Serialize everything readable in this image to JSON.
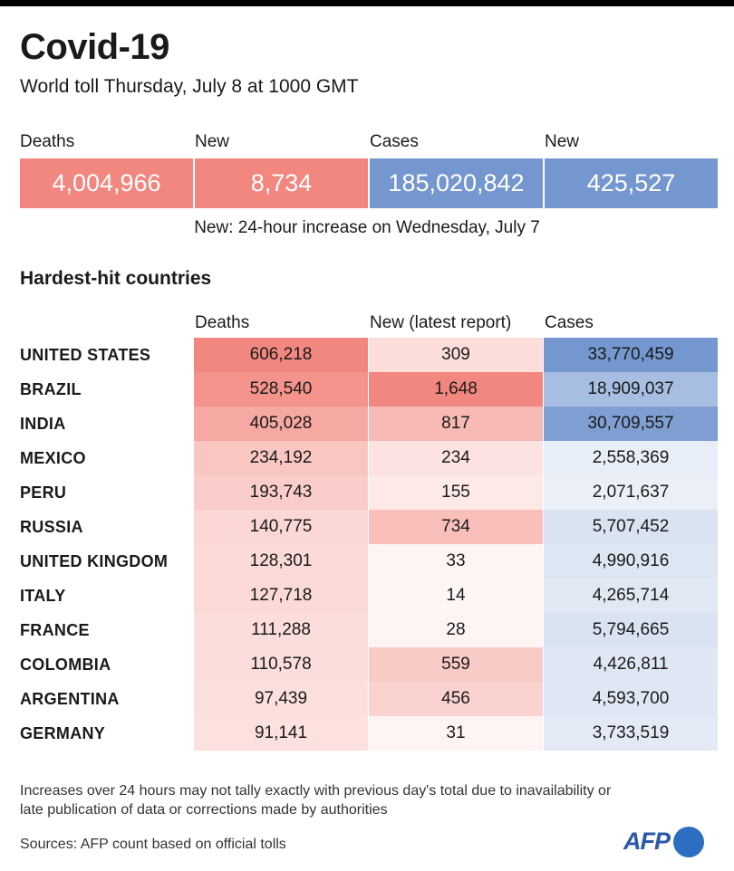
{
  "title": "Covid-19",
  "subtitle": "World toll Thursday, July 8 at 1000 GMT",
  "summary": [
    {
      "label": "Deaths",
      "value": "4,004,966",
      "color": "#f2877f"
    },
    {
      "label": "New",
      "value": "8,734",
      "color": "#f2877f"
    },
    {
      "label": "Cases",
      "value": "185,020,842",
      "color": "#7597cf"
    },
    {
      "label": "New",
      "value": "425,527",
      "color": "#7597cf"
    }
  ],
  "note": "New: 24-hour increase on Wednesday, July 7",
  "section_title": "Hardest-hit countries",
  "chart_data": {
    "type": "table",
    "columns": [
      "Deaths",
      "New (latest report)",
      "Cases"
    ],
    "rows": [
      {
        "country": "UNITED STATES",
        "deaths": 606218,
        "new": 309,
        "cases": 33770459,
        "deaths_label": "606,218",
        "new_label": "309",
        "cases_label": "33,770,459"
      },
      {
        "country": "BRAZIL",
        "deaths": 528540,
        "new": 1648,
        "cases": 18909037,
        "deaths_label": "528,540",
        "new_label": "1,648",
        "cases_label": "18,909,037"
      },
      {
        "country": "INDIA",
        "deaths": 405028,
        "new": 817,
        "cases": 30709557,
        "deaths_label": "405,028",
        "new_label": "817",
        "cases_label": "30,709,557"
      },
      {
        "country": "MEXICO",
        "deaths": 234192,
        "new": 234,
        "cases": 2558369,
        "deaths_label": "234,192",
        "new_label": "234",
        "cases_label": "2,558,369"
      },
      {
        "country": "PERU",
        "deaths": 193743,
        "new": 155,
        "cases": 2071637,
        "deaths_label": "193,743",
        "new_label": "155",
        "cases_label": "2,071,637"
      },
      {
        "country": "RUSSIA",
        "deaths": 140775,
        "new": 734,
        "cases": 5707452,
        "deaths_label": "140,775",
        "new_label": "734",
        "cases_label": "5,707,452"
      },
      {
        "country": "UNITED KINGDOM",
        "deaths": 128301,
        "new": 33,
        "cases": 4990916,
        "deaths_label": "128,301",
        "new_label": "33",
        "cases_label": "4,990,916"
      },
      {
        "country": "ITALY",
        "deaths": 127718,
        "new": 14,
        "cases": 4265714,
        "deaths_label": "127,718",
        "new_label": "14",
        "cases_label": "4,265,714"
      },
      {
        "country": "FRANCE",
        "deaths": 111288,
        "new": 28,
        "cases": 5794665,
        "deaths_label": "111,288",
        "new_label": "28",
        "cases_label": "5,794,665"
      },
      {
        "country": "COLOMBIA",
        "deaths": 110578,
        "new": 559,
        "cases": 4426811,
        "deaths_label": "110,578",
        "new_label": "559",
        "cases_label": "4,426,811"
      },
      {
        "country": "ARGENTINA",
        "deaths": 97439,
        "new": 456,
        "cases": 4593700,
        "deaths_label": "97,439",
        "new_label": "456",
        "cases_label": "4,593,700"
      },
      {
        "country": "GERMANY",
        "deaths": 91141,
        "new": 31,
        "cases": 3733519,
        "deaths_label": "91,141",
        "new_label": "31",
        "cases_label": "3,733,519"
      }
    ],
    "heat_colors": {
      "deaths": "#f2877f",
      "new": "#f2877f",
      "cases": "#7597cf"
    }
  },
  "footnote": "Increases over 24 hours may not tally exactly with previous day's total due to inavailability or late publication of data or corrections made by authorities",
  "source": "Sources: AFP count based on official tolls",
  "logo_text": "AFP"
}
